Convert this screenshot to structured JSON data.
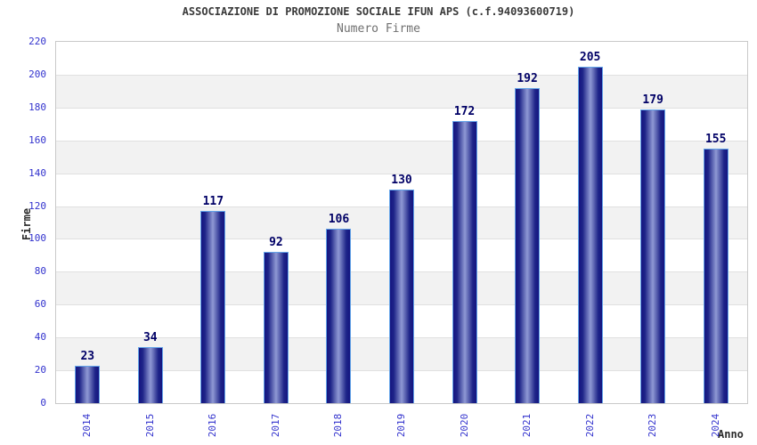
{
  "header": {
    "title": "ASSOCIAZIONE DI PROMOZIONE SOCIALE IFUN APS (c.f.94093600719)",
    "subtitle": "Numero Firme"
  },
  "chart_data": {
    "type": "bar",
    "title": "ASSOCIAZIONE DI PROMOZIONE SOCIALE IFUN APS (c.f.94093600719)",
    "subtitle": "Numero Firme",
    "xlabel": "Anno",
    "ylabel": "Firme",
    "categories": [
      "2014",
      "2015",
      "2016",
      "2017",
      "2018",
      "2019",
      "2020",
      "2021",
      "2022",
      "2023",
      "2024"
    ],
    "values": [
      23,
      34,
      117,
      92,
      106,
      130,
      172,
      192,
      205,
      179,
      155
    ],
    "ylim": [
      0,
      220
    ],
    "yticks": [
      0,
      20,
      40,
      60,
      80,
      100,
      120,
      140,
      160,
      180,
      200,
      220
    ],
    "grid": "horizontal-bands-alternating",
    "legend": "none",
    "bar_style": "vertical-cylinder-gradient"
  },
  "colors": {
    "title_color": "#3a3a3a",
    "subtitle_color": "#707070",
    "axis_title_color": "#2b2b2b",
    "tick_label": "#3232cd",
    "value_label": "#000066",
    "bar_dark": "#141480",
    "bar_mid": "#1e2488",
    "bar_light": "#8f99d4",
    "bar_border": "#63a3e8",
    "band_gray": "#f2f2f2",
    "band_white": "#ffffff",
    "grid_line": "#e0e0e0",
    "plot_border": "#c9c9c9"
  }
}
